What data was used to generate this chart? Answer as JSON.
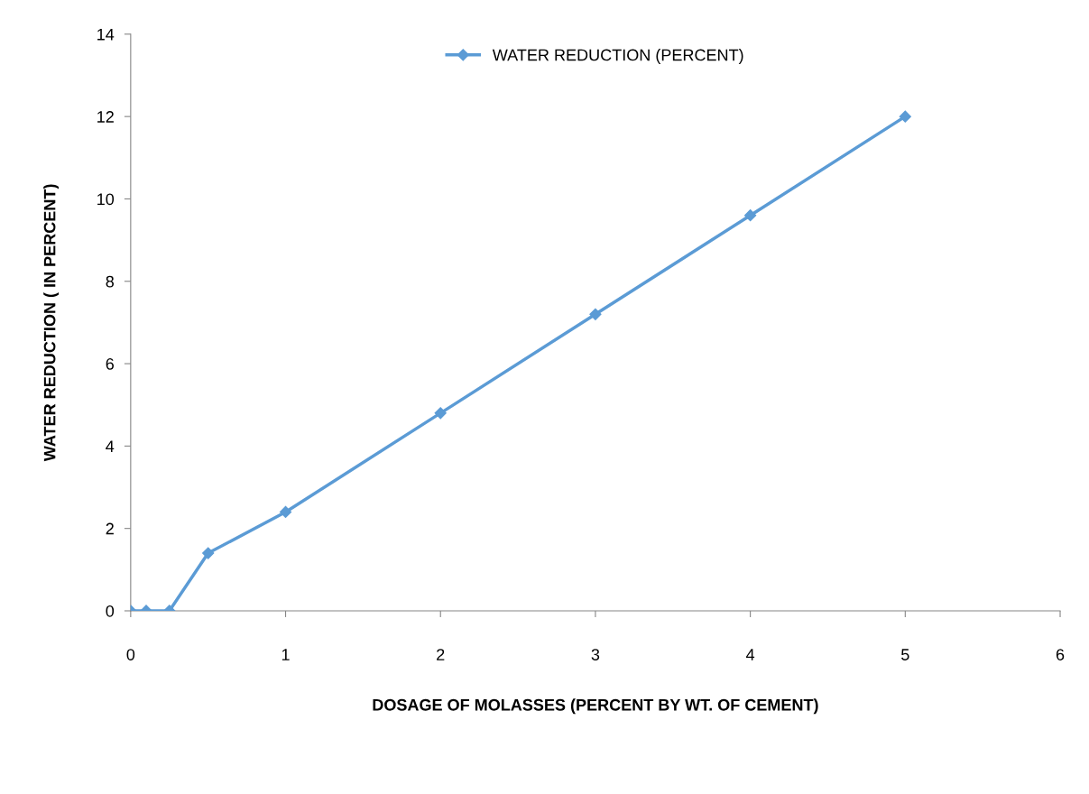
{
  "chart_data": {
    "type": "line",
    "xlabel": "DOSAGE OF MOLASSES (PERCENT BY WT. OF CEMENT)",
    "ylabel": "WATER REDUCTION ( IN PERCENT)",
    "x": [
      0,
      0.1,
      0.25,
      0.5,
      1,
      2,
      3,
      4,
      5
    ],
    "series": [
      {
        "name": "WATER REDUCTION (PERCENT)",
        "color": "#5b9bd5",
        "values": [
          0,
          0,
          0,
          1.4,
          2.4,
          4.8,
          7.2,
          9.6,
          12
        ]
      }
    ],
    "xlim": [
      0,
      6
    ],
    "xticks": [
      0,
      1,
      2,
      3,
      4,
      5,
      6
    ],
    "ylim": [
      0,
      14
    ],
    "yticks": [
      0,
      2,
      4,
      6,
      8,
      10,
      12,
      14
    ],
    "marker": "diamond",
    "line_style": "solid",
    "grid": false,
    "legend": "top"
  }
}
